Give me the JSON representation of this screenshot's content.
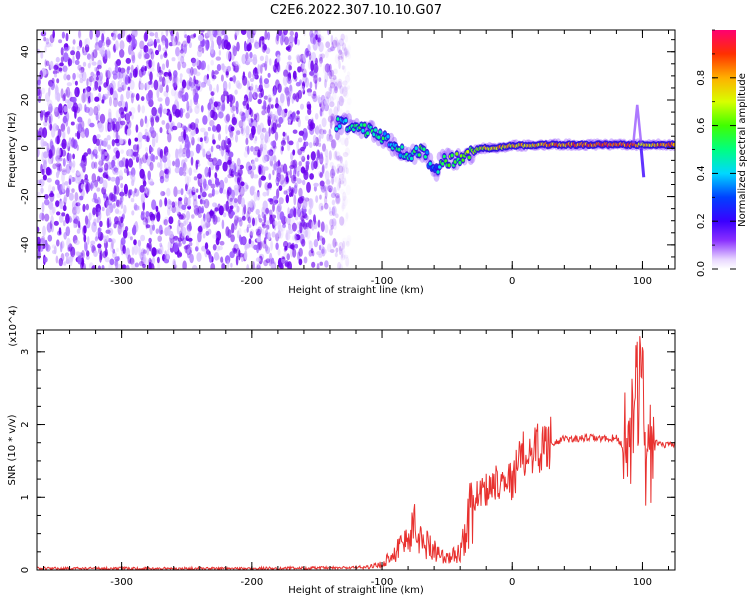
{
  "title": "C2E6.2022.307.10.10.G07",
  "colors": {
    "snr_line": "#e8312f",
    "frame": "#000000",
    "noise": "#6a00ee"
  },
  "chart_data": [
    {
      "type": "heatmap",
      "xlabel": "Height of straight line (km)",
      "ylabel": "Frequency (Hz)",
      "xlim": [
        -365,
        125
      ],
      "ylim": [
        -50,
        49
      ],
      "xticks": [
        -300,
        -200,
        -100,
        0,
        100
      ],
      "yticks": [
        -40,
        -20,
        0,
        20,
        40
      ],
      "colorbar": {
        "label": "Normalized spectral amplitude",
        "range": [
          0,
          1
        ],
        "ticks": [
          0.0,
          0.2,
          0.4,
          0.6,
          0.8
        ],
        "colormap": "rainbow"
      },
      "signal_trace": [
        {
          "x": -135,
          "y": 10,
          "a": 0.4
        },
        {
          "x": -125,
          "y": 10,
          "a": 0.45
        },
        {
          "x": -112,
          "y": 8,
          "a": 0.5
        },
        {
          "x": -100,
          "y": 5,
          "a": 0.45
        },
        {
          "x": -90,
          "y": 0,
          "a": 0.45
        },
        {
          "x": -80,
          "y": -3,
          "a": 0.4
        },
        {
          "x": -70,
          "y": -1,
          "a": 0.5
        },
        {
          "x": -58,
          "y": -9,
          "a": 0.3
        },
        {
          "x": -55,
          "y": -4,
          "a": 0.55
        },
        {
          "x": -45,
          "y": -5,
          "a": 0.6
        },
        {
          "x": -35,
          "y": -3,
          "a": 0.6
        },
        {
          "x": -25,
          "y": 0,
          "a": 0.7
        },
        {
          "x": -15,
          "y": 0,
          "a": 0.75
        },
        {
          "x": 0,
          "y": 1,
          "a": 0.75
        },
        {
          "x": 25,
          "y": 1.5,
          "a": 0.8
        },
        {
          "x": 50,
          "y": 1.5,
          "a": 0.85
        },
        {
          "x": 75,
          "y": 1.5,
          "a": 0.9
        },
        {
          "x": 90,
          "y": 1.5,
          "a": 0.85
        },
        {
          "x": 100,
          "y": 1.5,
          "a": 0.7
        },
        {
          "x": 115,
          "y": 1.5,
          "a": 0.85
        },
        {
          "x": 125,
          "y": 1.5,
          "a": 0.8
        }
      ]
    },
    {
      "type": "line",
      "xlabel": "Height of straight line (km)",
      "ylabel": "SNR (10 * v/v)",
      "yunit": "(x10^4)",
      "xlim": [
        -365,
        125
      ],
      "ylim": [
        0,
        3.3
      ],
      "xticks": [
        -300,
        -200,
        -100,
        0,
        100
      ],
      "yticks": [
        0,
        1,
        2,
        3
      ],
      "series": [
        {
          "x": [
            -365,
            -300,
            -200,
            -130,
            -110,
            -100,
            -90,
            -80,
            -75,
            -70,
            -65,
            -60,
            -55,
            -50,
            -45,
            -40,
            -35,
            -30,
            -25,
            -20,
            -15,
            -10,
            -5,
            0,
            5,
            10,
            20,
            30,
            40,
            50,
            60,
            70,
            80,
            85,
            90,
            95,
            98,
            100,
            103,
            106,
            110,
            115,
            120,
            125
          ],
          "y": [
            0.02,
            0.02,
            0.02,
            0.03,
            0.04,
            0.08,
            0.25,
            0.45,
            0.6,
            0.4,
            0.35,
            0.3,
            0.2,
            0.15,
            0.2,
            0.25,
            0.6,
            0.9,
            1.1,
            1.1,
            1.2,
            1.25,
            1.3,
            1.2,
            1.5,
            1.6,
            1.7,
            1.75,
            1.8,
            1.8,
            1.82,
            1.8,
            1.82,
            1.7,
            1.9,
            2.3,
            2.6,
            3.0,
            1.2,
            1.7,
            1.75,
            1.72,
            1.72,
            1.72
          ]
        }
      ]
    }
  ]
}
